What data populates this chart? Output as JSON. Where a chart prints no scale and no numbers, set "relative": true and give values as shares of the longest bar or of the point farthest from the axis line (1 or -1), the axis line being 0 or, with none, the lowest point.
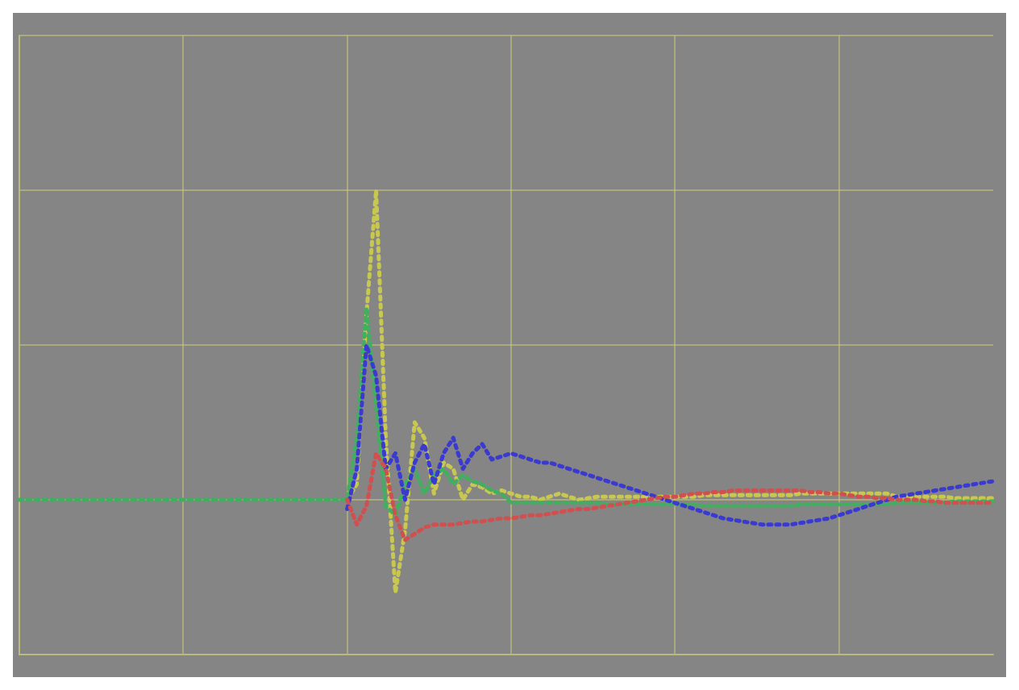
{
  "chart_data": {
    "type": "line",
    "relative": true,
    "grid": true,
    "line_style": "dotted",
    "marker": "none",
    "categories": [
      null,
      null,
      null,
      null,
      null,
      null,
      null,
      null,
      null,
      null,
      null,
      null,
      null,
      null,
      null,
      null,
      null,
      null,
      null,
      null,
      null,
      null,
      null,
      null,
      null,
      null,
      null,
      null,
      null,
      null,
      null,
      null,
      null,
      null,
      null,
      null,
      null,
      null,
      null,
      null,
      null,
      null,
      null,
      null,
      null,
      null,
      null,
      null,
      null,
      null,
      null,
      null,
      null,
      null,
      null,
      null,
      null,
      null,
      null,
      null,
      null,
      null,
      null,
      null,
      null,
      null,
      null,
      null,
      null,
      null,
      null,
      null,
      null,
      null,
      null,
      null,
      null,
      null,
      null,
      null,
      null,
      null,
      null,
      null,
      null,
      null,
      null,
      null,
      null,
      null,
      null,
      null,
      null,
      null,
      null,
      null,
      null,
      null,
      null,
      null,
      null,
      null
    ],
    "series": [
      {
        "color": "#d05050",
        "values": [
          null,
          null,
          null,
          null,
          null,
          null,
          null,
          null,
          null,
          null,
          null,
          null,
          null,
          null,
          null,
          null,
          null,
          null,
          null,
          null,
          null,
          null,
          null,
          null,
          null,
          null,
          null,
          null,
          null,
          null,
          null,
          null,
          null,
          null,
          0,
          -0.08,
          -0.02,
          0.15,
          0.1,
          -0.05,
          -0.13,
          -0.11,
          -0.09,
          -0.08,
          -0.08,
          -0.08,
          -0.075,
          -0.07,
          -0.07,
          -0.065,
          -0.06,
          -0.06,
          -0.055,
          -0.05,
          -0.05,
          -0.045,
          -0.04,
          -0.035,
          -0.03,
          -0.03,
          -0.025,
          -0.02,
          -0.015,
          -0.01,
          -0.005,
          0,
          0.005,
          0.01,
          0.01,
          0.015,
          0.02,
          0.02,
          0.025,
          0.025,
          0.03,
          0.03,
          0.03,
          0.03,
          0.03,
          0.03,
          0.03,
          0.03,
          0.025,
          0.025,
          0.02,
          0.02,
          0.015,
          0.01,
          0.01,
          0.005,
          0.005,
          0,
          0,
          0,
          -0.005,
          -0.005,
          -0.01,
          -0.01,
          -0.01,
          -0.01,
          -0.01,
          -0.01
        ]
      },
      {
        "color": "#3a3ad0",
        "values": [
          null,
          null,
          null,
          null,
          null,
          null,
          null,
          null,
          null,
          null,
          null,
          null,
          null,
          null,
          null,
          null,
          null,
          null,
          null,
          null,
          null,
          null,
          null,
          null,
          null,
          null,
          null,
          null,
          null,
          null,
          null,
          null,
          null,
          null,
          -0.03,
          0.1,
          0.5,
          0.4,
          0.1,
          0.15,
          0,
          0.12,
          0.18,
          0.05,
          0.15,
          0.2,
          0.1,
          0.15,
          0.18,
          0.13,
          0.14,
          0.15,
          0.14,
          0.13,
          0.12,
          0.12,
          0.11,
          0.1,
          0.09,
          0.08,
          0.07,
          0.06,
          0.05,
          0.04,
          0.03,
          0.02,
          0.01,
          0,
          -0.01,
          -0.02,
          -0.03,
          -0.04,
          -0.05,
          -0.06,
          -0.065,
          -0.07,
          -0.075,
          -0.08,
          -0.08,
          -0.08,
          -0.08,
          -0.075,
          -0.07,
          -0.065,
          -0.06,
          -0.05,
          -0.04,
          -0.03,
          -0.02,
          -0.01,
          0,
          0.01,
          0.015,
          0.02,
          0.025,
          0.03,
          0.035,
          0.04,
          0.045,
          0.05,
          0.055,
          0.06
        ]
      },
      {
        "color": "#40b060",
        "values": [
          0,
          0,
          0,
          0,
          0,
          0,
          0,
          0,
          0,
          0,
          0,
          0,
          0,
          0,
          0,
          0,
          0,
          0,
          0,
          0,
          0,
          0,
          0,
          0,
          0,
          0,
          0,
          0,
          0,
          0,
          0,
          0,
          0,
          0,
          0,
          0.2,
          0.62,
          0.3,
          -0.02,
          -0.05,
          0.05,
          0.1,
          0.02,
          0.08,
          0.1,
          0.05,
          0.08,
          0.06,
          0.05,
          0.03,
          0.02,
          -0.01,
          -0.01,
          -0.01,
          -0.01,
          -0.01,
          -0.01,
          -0.01,
          -0.01,
          -0.01,
          -0.01,
          -0.015,
          -0.015,
          -0.015,
          -0.015,
          -0.015,
          -0.015,
          -0.015,
          -0.015,
          -0.015,
          -0.015,
          -0.02,
          -0.02,
          -0.02,
          -0.02,
          -0.02,
          -0.02,
          -0.02,
          -0.02,
          -0.02,
          -0.02,
          -0.015,
          -0.015,
          -0.015,
          -0.015,
          -0.015,
          -0.015,
          -0.015,
          -0.015,
          -0.015,
          -0.015,
          -0.01,
          -0.01,
          -0.01,
          -0.01,
          -0.01,
          -0.01,
          -0.005,
          -0.005,
          -0.005,
          -0.005,
          -0.005
        ]
      },
      {
        "color": "#c8c850",
        "values": [
          null,
          null,
          null,
          null,
          null,
          null,
          null,
          null,
          null,
          null,
          null,
          null,
          null,
          null,
          null,
          null,
          null,
          null,
          null,
          null,
          null,
          null,
          null,
          null,
          null,
          null,
          null,
          null,
          null,
          null,
          null,
          null,
          null,
          null,
          0,
          0.05,
          0.6,
          1,
          0.2,
          -0.3,
          -0.1,
          0.25,
          0.2,
          0.02,
          0.12,
          0.1,
          0,
          0.05,
          0.04,
          0.02,
          0.03,
          0.02,
          0.01,
          0.01,
          0,
          0.01,
          0.02,
          0.01,
          0,
          0.005,
          0.01,
          0.01,
          0.01,
          0.01,
          0.01,
          0.01,
          0.01,
          0.01,
          0.01,
          0.01,
          0.01,
          0.015,
          0.015,
          0.015,
          0.015,
          0.015,
          0.015,
          0.015,
          0.015,
          0.015,
          0.015,
          0.02,
          0.02,
          0.02,
          0.02,
          0.02,
          0.02,
          0.02,
          0.02,
          0.02,
          0.02,
          0.01,
          0.01,
          0.01,
          0.01,
          0.01,
          0.01,
          0.005,
          0.005,
          0.005,
          0.005,
          0.005
        ]
      }
    ]
  }
}
